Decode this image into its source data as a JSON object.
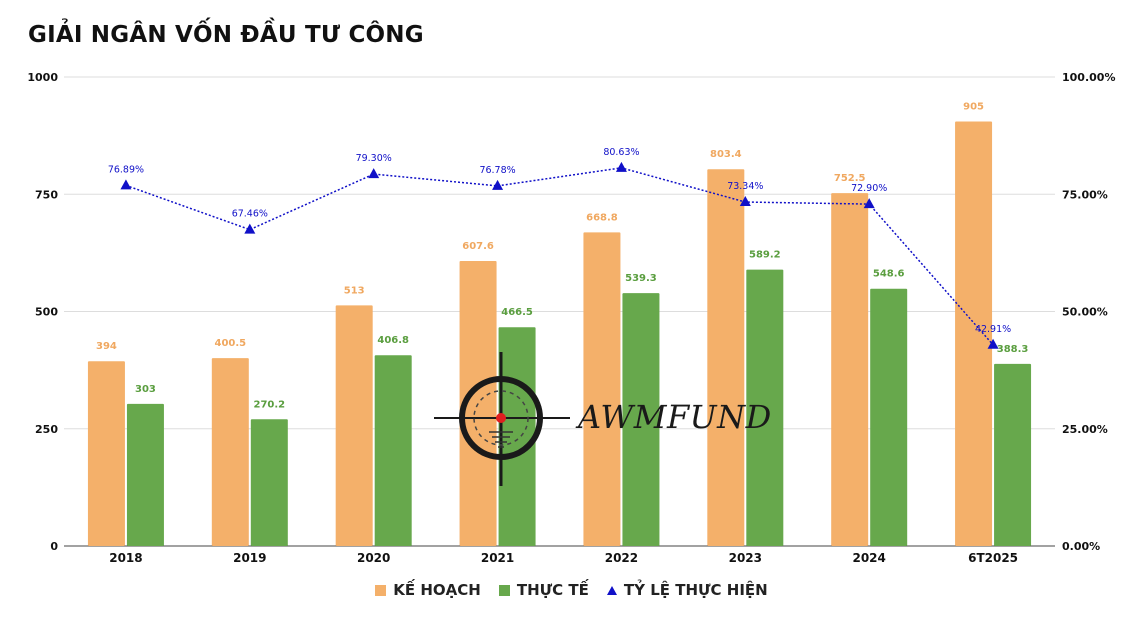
{
  "title": "GIẢI NGÂN VỐN ĐẦU TƯ CÔNG",
  "colors": {
    "plan": "#f4b06a",
    "actual": "#67a84c",
    "ratio": "#1010c8"
  },
  "legend": {
    "plan": "KẾ HOẠCH",
    "actual": "THỰC TẾ",
    "ratio": "TỶ LỆ THỰC HIỆN"
  },
  "watermark": {
    "text": "AWMFUND",
    "icon": "crosshair-target-icon"
  },
  "chart_data": {
    "type": "bar",
    "categories": [
      "2018",
      "2019",
      "2020",
      "2021",
      "2022",
      "2023",
      "2024",
      "6T2025"
    ],
    "series": [
      {
        "name": "KẾ HOẠCH",
        "type": "bar",
        "axis": "left",
        "values": [
          394,
          400.5,
          513,
          607.6,
          668.8,
          803.4,
          752.5,
          905
        ],
        "labels": [
          "394",
          "400.5",
          "513",
          "607.6",
          "668.8",
          "803.4",
          "752.5",
          "905"
        ]
      },
      {
        "name": "THỰC TẾ",
        "type": "bar",
        "axis": "left",
        "values": [
          303,
          270.2,
          406.8,
          466.5,
          539.3,
          589.2,
          548.6,
          388.3
        ],
        "labels": [
          "303",
          "270.2",
          "406.8",
          "466.5",
          "539.3",
          "589.2",
          "548.6",
          "388.3"
        ]
      },
      {
        "name": "TỶ LỆ THỰC HIỆN",
        "type": "line",
        "style": "dotted",
        "marker": "triangle",
        "axis": "right",
        "values": [
          76.89,
          67.46,
          79.3,
          76.78,
          80.63,
          73.34,
          72.9,
          42.91
        ],
        "labels": [
          "76.89%",
          "67.46%",
          "79.30%",
          "76.78%",
          "80.63%",
          "73.34%",
          "72.90%",
          "42.91%"
        ]
      }
    ],
    "y_left": {
      "ylim": [
        0,
        1000
      ],
      "ticks": [
        "0",
        "250",
        "500",
        "750",
        "1000"
      ],
      "tick_values": [
        0,
        250,
        500,
        750,
        1000
      ]
    },
    "y_right": {
      "ylim": [
        0,
        100
      ],
      "ticks": [
        "0.00%",
        "25.00%",
        "50.00%",
        "75.00%",
        "100.00%"
      ],
      "tick_values": [
        0,
        25,
        50,
        75,
        100
      ]
    },
    "xlabel": "",
    "ylabel": "",
    "grid": true,
    "legend_position": "bottom"
  }
}
